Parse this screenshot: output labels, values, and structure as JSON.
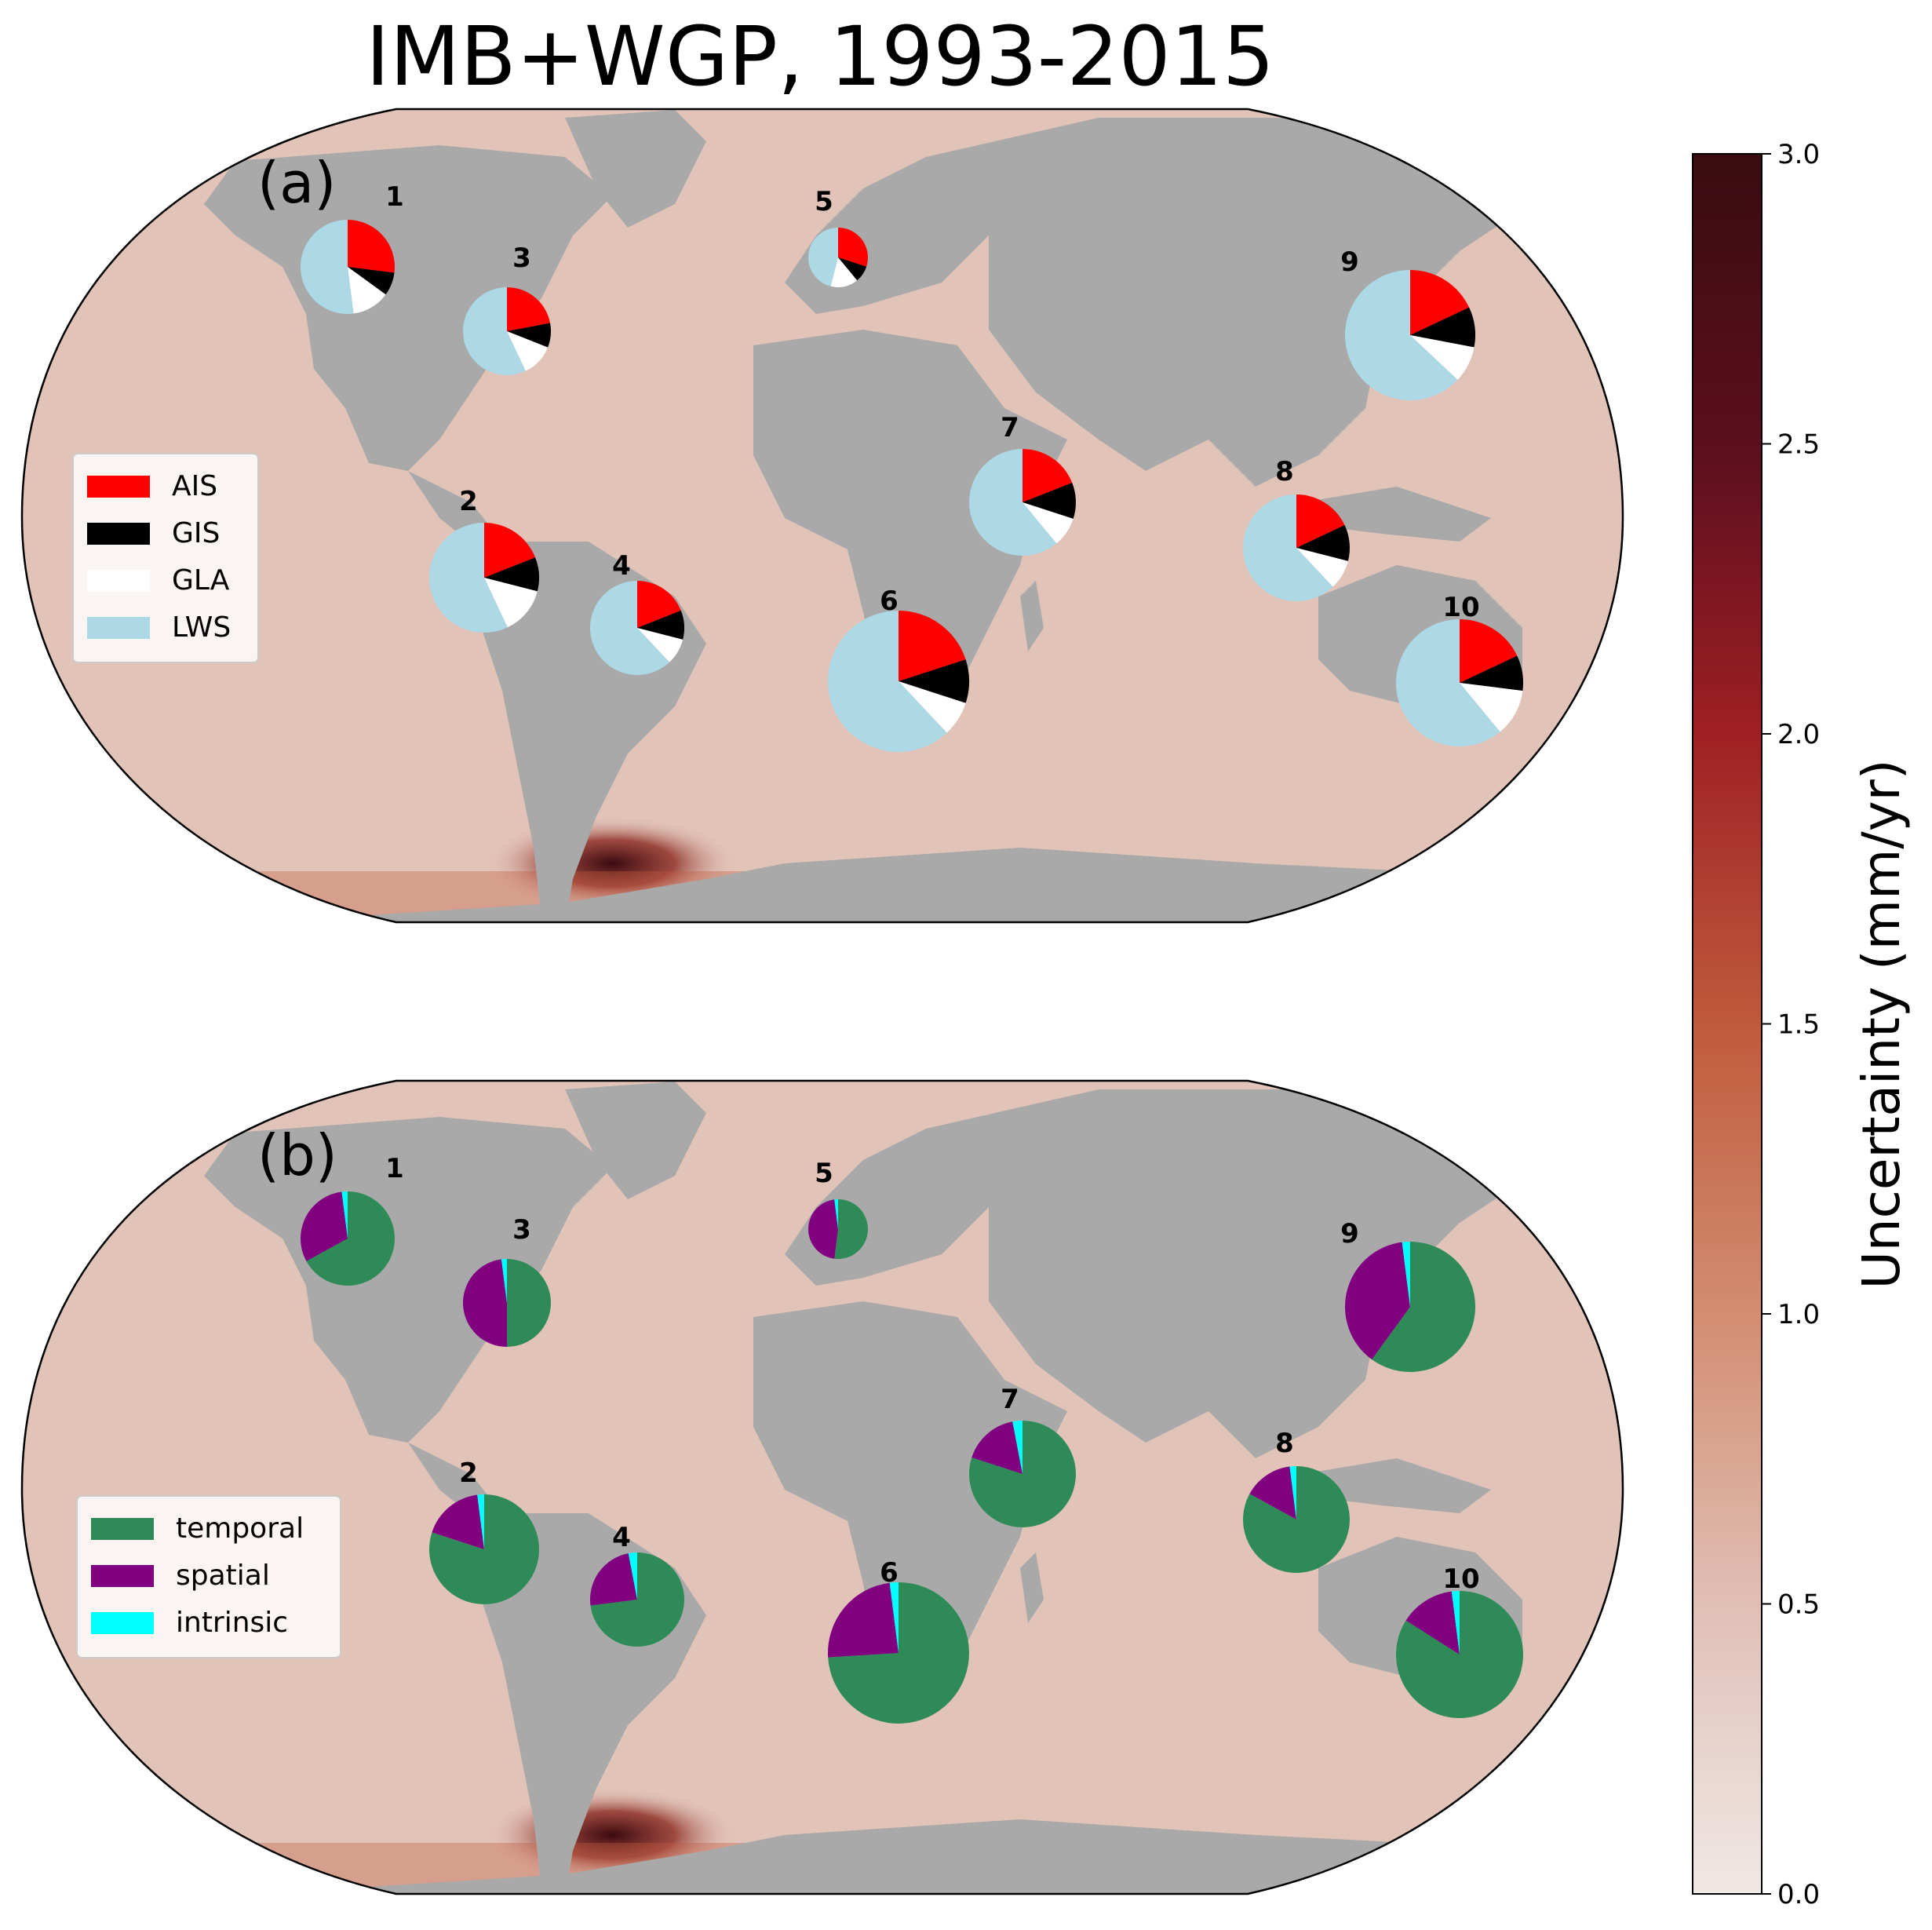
{
  "title": "IMB+WGP, 1993-2015",
  "colorbar": {
    "label": "Uncertainty (mm/yr)",
    "min": 0.0,
    "max": 3.0,
    "ticks": [
      "0.0",
      "0.5",
      "1.0",
      "1.5",
      "2.0",
      "2.5",
      "3.0"
    ],
    "colors": [
      "#f0e8e6",
      "#e0beb4",
      "#d38e72",
      "#c05a3c",
      "#9e1f24",
      "#5c0f1e",
      "#3a0c12"
    ]
  },
  "map_colors": {
    "ocean": "#e2c3b8",
    "land": "#a9a9a9",
    "high_uncertainty": "#3b0a10",
    "frame": "#000000"
  },
  "panels": [
    {
      "label": "(a)",
      "legend": [
        {
          "label": "AIS",
          "color": "#ff0000"
        },
        {
          "label": "GIS",
          "color": "#000000"
        },
        {
          "label": "GLA",
          "color": "#ffffff"
        },
        {
          "label": "LWS",
          "color": "#add8e6"
        }
      ],
      "pies": [
        {
          "id": "1",
          "values": [
            0.27,
            0.08,
            0.13,
            0.52
          ]
        },
        {
          "id": "2",
          "values": [
            0.19,
            0.1,
            0.14,
            0.57
          ]
        },
        {
          "id": "3",
          "values": [
            0.22,
            0.09,
            0.12,
            0.57
          ]
        },
        {
          "id": "4",
          "values": [
            0.19,
            0.1,
            0.09,
            0.62
          ]
        },
        {
          "id": "5",
          "values": [
            0.3,
            0.09,
            0.15,
            0.46
          ]
        },
        {
          "id": "6",
          "values": [
            0.2,
            0.1,
            0.08,
            0.62
          ]
        },
        {
          "id": "7",
          "values": [
            0.19,
            0.11,
            0.09,
            0.61
          ]
        },
        {
          "id": "8",
          "values": [
            0.18,
            0.11,
            0.09,
            0.62
          ]
        },
        {
          "id": "9",
          "values": [
            0.18,
            0.1,
            0.09,
            0.63
          ]
        },
        {
          "id": "10",
          "values": [
            0.18,
            0.09,
            0.12,
            0.61
          ]
        }
      ]
    },
    {
      "label": "(b)",
      "legend": [
        {
          "label": "temporal",
          "color": "#2e8b57"
        },
        {
          "label": "spatial",
          "color": "#800080"
        },
        {
          "label": "intrinsic",
          "color": "#00ffff"
        }
      ],
      "pies": [
        {
          "id": "1",
          "values": [
            0.67,
            0.31,
            0.02
          ]
        },
        {
          "id": "2",
          "values": [
            0.8,
            0.18,
            0.02
          ]
        },
        {
          "id": "3",
          "values": [
            0.5,
            0.48,
            0.02
          ]
        },
        {
          "id": "4",
          "values": [
            0.73,
            0.24,
            0.03
          ]
        },
        {
          "id": "5",
          "values": [
            0.52,
            0.46,
            0.02
          ]
        },
        {
          "id": "6",
          "values": [
            0.74,
            0.24,
            0.02
          ]
        },
        {
          "id": "7",
          "values": [
            0.8,
            0.17,
            0.03
          ]
        },
        {
          "id": "8",
          "values": [
            0.83,
            0.15,
            0.02
          ]
        },
        {
          "id": "9",
          "values": [
            0.6,
            0.38,
            0.02
          ]
        },
        {
          "id": "10",
          "values": [
            0.84,
            0.14,
            0.02
          ]
        }
      ]
    }
  ]
}
